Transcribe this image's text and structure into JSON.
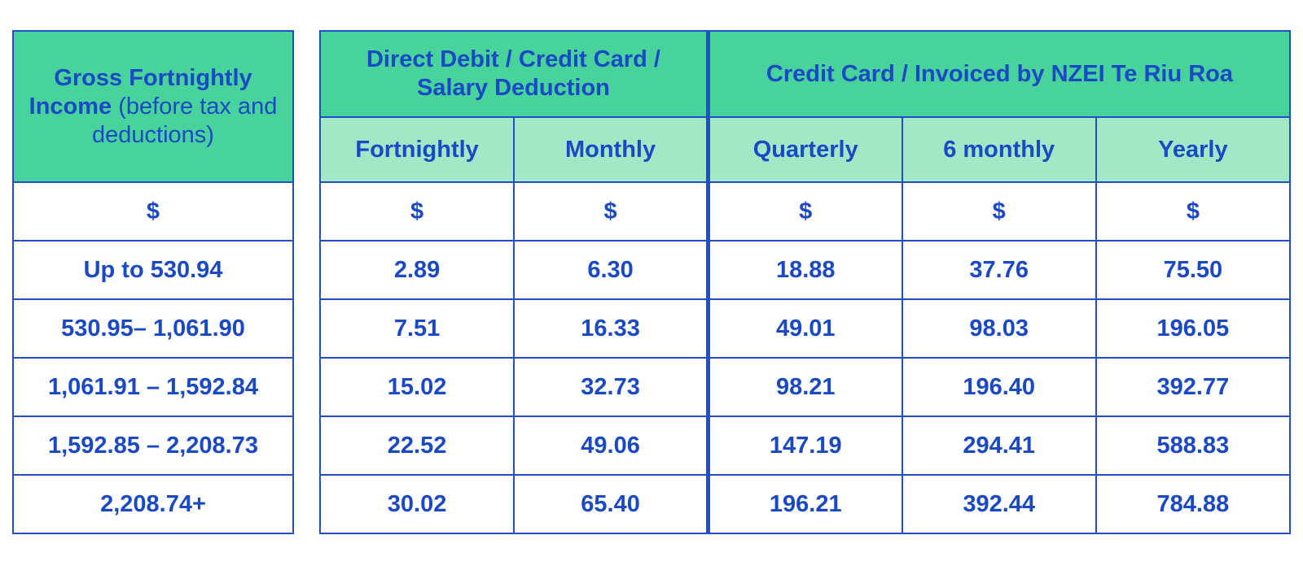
{
  "income_header": {
    "bold": "Gross Fortnightly Income",
    "normal": "(before tax and deductions)"
  },
  "income_unit": "$",
  "groups": {
    "direct_debit": "Direct Debit / Credit Card / Salary Deduction",
    "credit_card": "Credit Card / Invoiced by NZEI Te Riu Roa"
  },
  "columns": [
    "Fortnightly",
    "Monthly",
    "Quarterly",
    "6 monthly",
    "Yearly"
  ],
  "units": [
    "$",
    "$",
    "$",
    "$",
    "$"
  ],
  "rows": [
    {
      "income": "Up to 530.94",
      "values": [
        "2.89",
        "6.30",
        "18.88",
        "37.76",
        "75.50"
      ]
    },
    {
      "income": "530.95– 1,061.90",
      "values": [
        "7.51",
        "16.33",
        "49.01",
        "98.03",
        "196.05"
      ]
    },
    {
      "income": "1,061.91 – 1,592.84",
      "values": [
        "15.02",
        "32.73",
        "98.21",
        "196.40",
        "392.77"
      ]
    },
    {
      "income": "1,592.85 – 2,208.73",
      "values": [
        "22.52",
        "49.06",
        "147.19",
        "294.41",
        "588.83"
      ]
    },
    {
      "income": "2,208.74+",
      "values": [
        "30.02",
        "65.40",
        "196.21",
        "392.44",
        "784.88"
      ]
    }
  ],
  "colors": {
    "header_dark": "#47d39b",
    "header_light": "#a3e8c6",
    "text_blue": "#1a49c5",
    "border_blue": "#1f4fc9"
  }
}
